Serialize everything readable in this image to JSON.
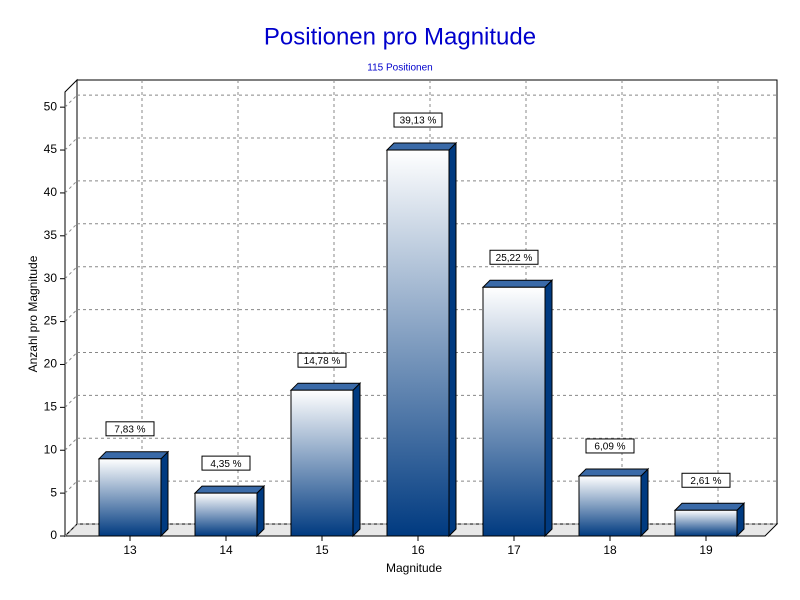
{
  "chart_data": {
    "type": "bar",
    "title": "Positionen pro Magnitude",
    "subtitle": "115 Positionen",
    "x_label": "Magnitude",
    "y_label": "Anzahl pro Magnitude",
    "categories": [
      "13",
      "14",
      "15",
      "16",
      "17",
      "18",
      "19"
    ],
    "values": [
      9,
      5,
      17,
      45,
      29,
      7,
      3
    ],
    "percent_labels": [
      "7,83 %",
      "4,35 %",
      "14,78 %",
      "39,13 %",
      "25,22 %",
      "6,09 %",
      "2,61 %"
    ],
    "color": "#003a80",
    "ylim": [
      0,
      52
    ],
    "yticks": [
      0,
      5,
      10,
      15,
      20,
      25,
      30,
      35,
      40,
      45,
      50
    ],
    "grid": true
  }
}
